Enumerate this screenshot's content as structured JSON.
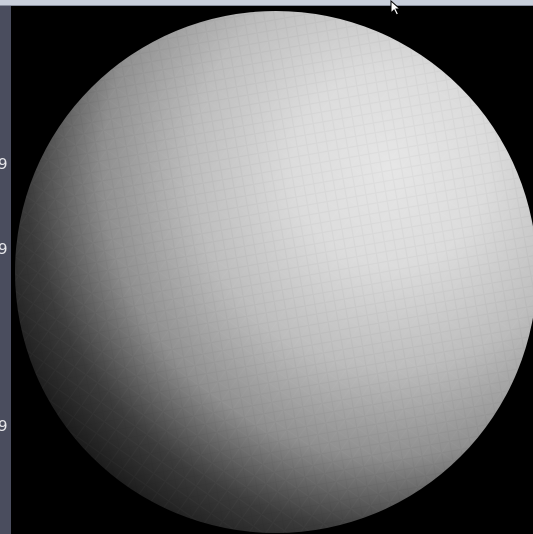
{
  "left_panel": {
    "labels": [
      {
        "text": "9"
      },
      {
        "text": "9"
      },
      {
        "text": "9"
      }
    ]
  },
  "viewport": {
    "object": "shaded-sphere",
    "colors": {
      "highlight": "#e4e4e4",
      "midtone": "#b5b5b5",
      "shadow": "#1a1a1a",
      "background": "#000000"
    }
  },
  "colors": {
    "top_strip": "#c9cfdb",
    "left_panel": "#4a4d5e",
    "label_text": "#e6e6ea"
  },
  "icons": {
    "cursor": "mouse-pointer-icon"
  }
}
